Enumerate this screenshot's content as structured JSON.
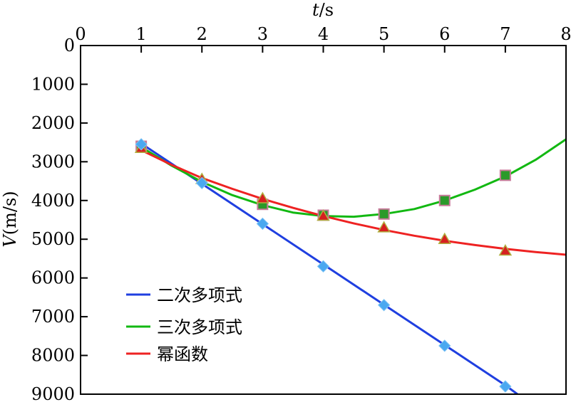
{
  "chart_data": {
    "type": "scatter",
    "title": "",
    "xlabel": "t/s",
    "xlabel_var": "t",
    "xlabel_unit": "/s",
    "ylabel": "V(m/s)",
    "ylabel_var": "V",
    "ylabel_unit": "(m/s)",
    "xlim": [
      0,
      8
    ],
    "ylim": [
      0,
      9000
    ],
    "y_inverted": true,
    "x_axis_position": "top",
    "xticks": [
      0,
      1,
      2,
      3,
      4,
      5,
      6,
      7,
      8
    ],
    "yticks": [
      0,
      1000,
      2000,
      3000,
      4000,
      5000,
      6000,
      7000,
      8000,
      9000
    ],
    "legend_position": "bottom-left",
    "points": {
      "square": {
        "color": "#2a9a2a",
        "edge": "#c77a9a",
        "x": [
          1,
          3,
          4,
          5,
          6,
          7
        ],
        "y": [
          2600,
          4100,
          4380,
          4350,
          4000,
          3350
        ]
      },
      "triangle": {
        "color": "#d62020",
        "edge": "#b0b040",
        "x": [
          1,
          2,
          3,
          4,
          5,
          6,
          7
        ],
        "y": [
          2650,
          3450,
          3950,
          4400,
          4700,
          5000,
          5300
        ]
      },
      "diamond": {
        "color": "#4aa8f0",
        "x": [
          1,
          2,
          3,
          4,
          5,
          6,
          7
        ],
        "y": [
          2550,
          3550,
          4600,
          5700,
          6700,
          7750,
          8800
        ]
      }
    },
    "series": [
      {
        "name": "二次多项式",
        "color": "#1f3fe0",
        "x": [
          1,
          2,
          3,
          4,
          5,
          6,
          7,
          7.2
        ],
        "y": [
          2530,
          3570,
          4610,
          5650,
          6690,
          7730,
          8770,
          9000
        ]
      },
      {
        "name": "三次多项式",
        "color": "#12b812",
        "x": [
          1,
          1.5,
          2,
          2.5,
          3,
          3.5,
          4,
          4.5,
          5,
          5.5,
          6,
          6.5,
          7,
          7.5,
          8
        ],
        "y": [
          2620,
          3100,
          3520,
          3860,
          4120,
          4310,
          4400,
          4420,
          4350,
          4220,
          4000,
          3720,
          3380,
          2950,
          2420
        ]
      },
      {
        "name": "幂函数",
        "color": "#ee2222",
        "x": [
          1,
          1.5,
          2,
          2.5,
          3,
          3.5,
          4,
          4.5,
          5,
          5.5,
          6,
          6.5,
          7,
          7.5,
          8
        ],
        "y": [
          2700,
          3080,
          3420,
          3700,
          3960,
          4190,
          4400,
          4590,
          4760,
          4910,
          5040,
          5150,
          5250,
          5330,
          5400
        ]
      }
    ]
  }
}
